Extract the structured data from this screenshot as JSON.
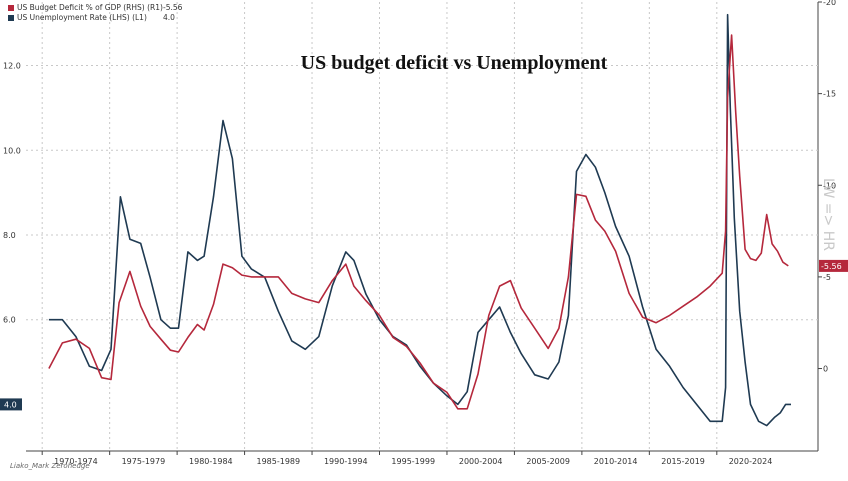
{
  "title": "US budget deficit vs Unemployment",
  "credit": "Liako_Mark Zerohedge",
  "legend": [
    {
      "name": "US Budget Deficit % of GDP (RHS) (R1)",
      "value": "-5.56",
      "color": "#b5283c"
    },
    {
      "name": "US Unemployment Rate (LHS) (L1)",
      "value": "4.0",
      "color": "#1f3a52"
    }
  ],
  "rhs_note": "LW => HR",
  "chart_data": {
    "type": "line",
    "title": "US budget deficit vs Unemployment",
    "x_ticks": [
      "1970-1974",
      "1975-1979",
      "1980-1984",
      "1985-1989",
      "1990-1994",
      "1995-1999",
      "2000-2004",
      "2005-2009",
      "2010-2014",
      "2015-2019",
      "2020-2024"
    ],
    "left_axis": {
      "ticks": [
        "12.0",
        "10.0",
        "8.0",
        "6.0"
      ],
      "ylim": [
        2.9,
        13.5
      ],
      "last_value_label": "4.0"
    },
    "right_axis": {
      "ticks": [
        "20",
        "15",
        "10",
        "5",
        "0"
      ],
      "ylim": [
        -4.5,
        20
      ],
      "inverted": true,
      "last_value_label": "5.56"
    },
    "grid": true,
    "legend_position": "top-left",
    "series": [
      {
        "name": "US Unemployment Rate (LHS)",
        "axis": "left",
        "color": "#1f3a52",
        "x": [
          1970.0,
          1971.0,
          1972.0,
          1973.0,
          1973.9,
          1974.6,
          1975.3,
          1976.0,
          1976.8,
          1977.5,
          1978.3,
          1979.0,
          1979.6,
          1980.3,
          1981.0,
          1981.5,
          1982.2,
          1982.9,
          1983.6,
          1984.3,
          1985.0,
          1986.0,
          1987.0,
          1988.0,
          1989.0,
          1990.0,
          1991.0,
          1992.0,
          1992.6,
          1993.5,
          1994.5,
          1995.5,
          1996.5,
          1997.5,
          1998.5,
          1999.5,
          2000.3,
          2001.0,
          2001.8,
          2002.6,
          2003.4,
          2004.2,
          2005.0,
          2006.0,
          2007.0,
          2007.8,
          2008.5,
          2009.1,
          2009.8,
          2010.5,
          2011.2,
          2012.0,
          2013.0,
          2014.0,
          2015.0,
          2016.0,
          2017.0,
          2018.0,
          2019.0,
          2019.9,
          2020.15,
          2020.3,
          2020.5,
          2020.8,
          2021.2,
          2021.6,
          2022.0,
          2022.6,
          2023.2,
          2023.8,
          2024.2,
          2024.6,
          2025.0
        ],
        "values": [
          6.0,
          6.0,
          5.6,
          4.9,
          4.8,
          5.3,
          8.9,
          7.9,
          7.8,
          7.0,
          6.0,
          5.8,
          5.8,
          7.6,
          7.4,
          7.5,
          8.9,
          10.7,
          9.8,
          7.5,
          7.2,
          7.0,
          6.2,
          5.5,
          5.3,
          5.6,
          6.8,
          7.6,
          7.4,
          6.6,
          6.0,
          5.6,
          5.4,
          4.9,
          4.5,
          4.2,
          4.0,
          4.3,
          5.7,
          6.0,
          6.3,
          5.7,
          5.2,
          4.7,
          4.6,
          5.0,
          6.1,
          9.5,
          9.9,
          9.6,
          9.0,
          8.2,
          7.5,
          6.3,
          5.3,
          4.9,
          4.4,
          4.0,
          3.6,
          3.6,
          4.4,
          13.2,
          11.0,
          8.4,
          6.2,
          5.0,
          4.0,
          3.6,
          3.5,
          3.7,
          3.8,
          4.0,
          4.0
        ]
      },
      {
        "name": "US Budget Deficit % of GDP (RHS)",
        "axis": "right",
        "color": "#b5283c",
        "x": [
          1970.0,
          1971.0,
          1972.0,
          1973.0,
          1973.9,
          1974.6,
          1975.2,
          1976.0,
          1976.8,
          1977.5,
          1978.3,
          1979.0,
          1979.6,
          1980.3,
          1981.0,
          1981.5,
          1982.2,
          1982.9,
          1983.6,
          1984.3,
          1985.0,
          1986.0,
          1987.0,
          1988.0,
          1989.0,
          1990.0,
          1991.0,
          1992.0,
          1992.6,
          1993.5,
          1994.5,
          1995.5,
          1996.5,
          1997.5,
          1998.5,
          1999.5,
          2000.3,
          2001.0,
          2001.8,
          2002.6,
          2003.4,
          2004.2,
          2005.0,
          2006.0,
          2007.0,
          2007.8,
          2008.5,
          2009.1,
          2009.8,
          2010.5,
          2011.2,
          2012.0,
          2013.0,
          2014.0,
          2015.0,
          2016.0,
          2017.0,
          2018.0,
          2019.0,
          2019.9,
          2020.15,
          2020.3,
          2020.6,
          2020.9,
          2021.2,
          2021.6,
          2022.0,
          2022.4,
          2022.8,
          2023.2,
          2023.6,
          2024.0,
          2024.4,
          2024.8
        ],
        "values": [
          0.0,
          1.4,
          1.6,
          1.1,
          -0.5,
          -0.6,
          3.6,
          5.3,
          3.4,
          2.3,
          1.6,
          1.0,
          0.9,
          1.7,
          2.4,
          2.1,
          3.5,
          5.7,
          5.5,
          5.1,
          5.0,
          5.0,
          5.0,
          4.1,
          3.8,
          3.6,
          4.8,
          5.7,
          4.5,
          3.7,
          2.9,
          1.7,
          1.2,
          0.3,
          -0.8,
          -1.3,
          -2.2,
          -2.2,
          -0.3,
          2.9,
          4.5,
          4.8,
          3.3,
          2.2,
          1.1,
          2.2,
          5.0,
          9.5,
          9.4,
          8.1,
          7.5,
          6.4,
          4.1,
          2.8,
          2.5,
          2.9,
          3.4,
          3.9,
          4.5,
          5.2,
          7.5,
          14.8,
          18.2,
          14.0,
          10.5,
          6.5,
          6.0,
          5.9,
          6.3,
          8.4,
          6.8,
          6.4,
          5.8,
          5.6
        ]
      }
    ]
  }
}
